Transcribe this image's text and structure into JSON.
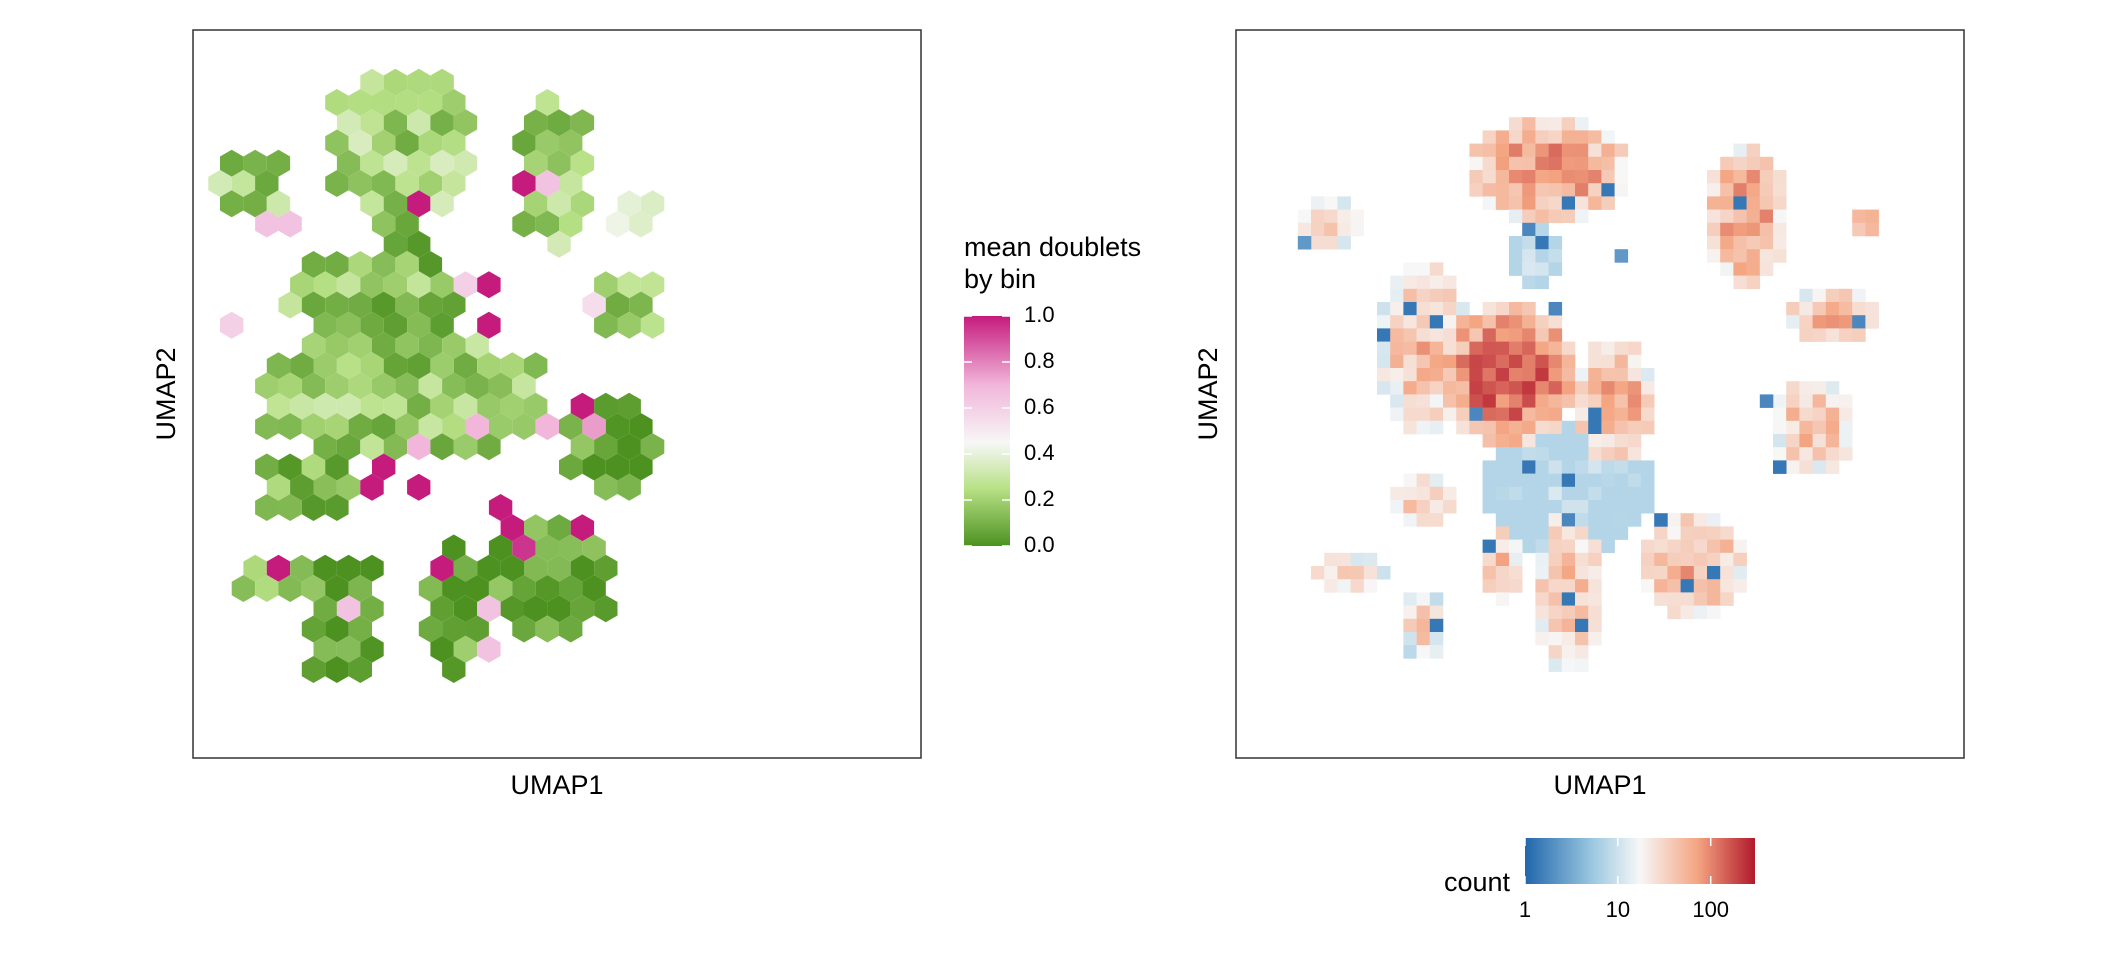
{
  "chart_data": [
    {
      "type": "heatmap",
      "subtype": "hexbin",
      "xlabel": "UMAP1",
      "ylabel": "UMAP2",
      "grid": false,
      "legend": {
        "title_line1": "mean doublets",
        "title_line2": "by bin",
        "position": "right",
        "range": [
          0,
          1
        ],
        "ticks": [
          "1.0",
          "0.8",
          "0.6",
          "0.4",
          "0.2",
          "0.0"
        ],
        "tick_values": [
          1.0,
          0.8,
          0.6,
          0.4,
          0.2,
          0.0
        ]
      },
      "colors": {
        "low": "#4d9221",
        "mid": "#f7f7f7",
        "high": "#c51b7d"
      },
      "groups": [
        {
          "name": "top-cluster",
          "col": [
            5,
            10
          ],
          "row": [
            1,
            7
          ],
          "level": 0.22
        },
        {
          "name": "stalk",
          "col": [
            7,
            8
          ],
          "row": [
            8,
            9
          ],
          "level": 0.05
        },
        {
          "name": "upper-middle",
          "col": [
            3,
            10
          ],
          "row": [
            10,
            13
          ],
          "level": 0.15
        },
        {
          "name": "central-mass",
          "col": [
            2,
            13
          ],
          "row": [
            14,
            19
          ],
          "level": 0.18
        },
        {
          "name": "left-lower-wing",
          "col": [
            2,
            5
          ],
          "row": [
            20,
            22
          ],
          "level": 0.15
        },
        {
          "name": "top-right-spike",
          "col": [
            13,
            15
          ],
          "row": [
            2,
            9
          ],
          "level": 0.2
        },
        {
          "name": "left-small",
          "col": [
            0,
            2
          ],
          "row": [
            5,
            7
          ],
          "level": 0.2
        },
        {
          "name": "right-small-a",
          "col": [
            17,
            18
          ],
          "row": [
            7,
            8
          ],
          "level": 0.3
        },
        {
          "name": "right-small-b",
          "col": [
            16,
            18
          ],
          "row": [
            11,
            13
          ],
          "level": 0.2
        },
        {
          "name": "right-cluster",
          "col": [
            15,
            18
          ],
          "row": [
            17,
            21
          ],
          "level": 0.03
        },
        {
          "name": "lower-right-mass",
          "col": [
            12,
            16
          ],
          "row": [
            23,
            28
          ],
          "level": 0.03
        },
        {
          "name": "lower-left-blob",
          "col": [
            1,
            3
          ],
          "row": [
            25,
            26
          ],
          "level": 0.2
        },
        {
          "name": "lower-left-stalk",
          "col": [
            4,
            6
          ],
          "row": [
            25,
            30
          ],
          "level": 0.05
        },
        {
          "name": "lower-middle",
          "col": [
            9,
            11
          ],
          "row": [
            24,
            30
          ],
          "level": 0.05
        }
      ],
      "highlights": [
        {
          "col": 8,
          "row": 7,
          "value": 1.0
        },
        {
          "col": 11,
          "row": 11,
          "value": 1.0
        },
        {
          "col": 11,
          "row": 13,
          "value": 1.0
        },
        {
          "col": 14,
          "row": 6,
          "value": 0.65
        },
        {
          "col": 13,
          "row": 6,
          "value": 1.0
        },
        {
          "col": 2,
          "row": 8,
          "value": 0.65
        },
        {
          "col": 3,
          "row": 8,
          "value": 0.65
        },
        {
          "col": 7,
          "row": 20,
          "value": 1.0
        },
        {
          "col": 8,
          "row": 21,
          "value": 1.0
        },
        {
          "col": 12,
          "row": 22,
          "value": 1.0
        },
        {
          "col": 12,
          "row": 23,
          "value": 1.0
        },
        {
          "col": 13,
          "row": 24,
          "value": 0.95
        },
        {
          "col": 15,
          "row": 23,
          "value": 1.0
        },
        {
          "col": 9,
          "row": 25,
          "value": 1.0
        },
        {
          "col": 2,
          "row": 25,
          "value": 1.0
        },
        {
          "col": 11,
          "row": 18,
          "value": 0.7
        },
        {
          "col": 14,
          "row": 18,
          "value": 0.7
        },
        {
          "col": 6,
          "row": 21,
          "value": 1.0
        },
        {
          "col": 15,
          "row": 17,
          "value": 1.0
        },
        {
          "col": 16,
          "row": 18,
          "value": 0.75
        },
        {
          "col": 11,
          "row": 27,
          "value": 0.65
        },
        {
          "col": 11,
          "row": 29,
          "value": 0.65
        },
        {
          "col": 8,
          "row": 19,
          "value": 0.7
        },
        {
          "col": 10,
          "row": 11,
          "value": 0.6
        },
        {
          "col": 0,
          "row": 13,
          "value": 0.6
        },
        {
          "col": 5,
          "row": 27,
          "value": 0.65
        },
        {
          "col": 16,
          "row": 12,
          "value": 0.55
        }
      ]
    },
    {
      "type": "heatmap",
      "subtype": "square-bin",
      "xlabel": "UMAP1",
      "ylabel": "UMAP2",
      "grid": false,
      "scale": "log10",
      "legend": {
        "title": "count",
        "position": "bottom",
        "range": [
          1,
          300
        ],
        "ticks": [
          "1",
          "10",
          "100"
        ],
        "tick_values": [
          1,
          10,
          100
        ]
      },
      "colors": {
        "low": "#2166ac",
        "mid": "#f7f7f7",
        "high": "#b2182b"
      },
      "groups": [
        {
          "name": "top-cluster",
          "col": [
            17,
            28
          ],
          "row": [
            6,
            13
          ],
          "level": 0.72
        },
        {
          "name": "stalk",
          "col": [
            20,
            23
          ],
          "row": [
            14,
            18
          ],
          "level": 0.35
        },
        {
          "name": "left-small",
          "col": [
            4,
            8
          ],
          "row": [
            12,
            15
          ],
          "level": 0.6
        },
        {
          "name": "top-right-spike",
          "col": [
            35,
            40
          ],
          "row": [
            8,
            18
          ],
          "level": 0.7
        },
        {
          "name": "right-small-a",
          "col": [
            46,
            47
          ],
          "row": [
            13,
            14
          ],
          "level": 0.65
        },
        {
          "name": "right-small-b",
          "col": [
            41,
            47
          ],
          "row": [
            19,
            22
          ],
          "level": 0.65
        },
        {
          "name": "central-left",
          "col": [
            10,
            16
          ],
          "row": [
            17,
            29
          ],
          "level": 0.62
        },
        {
          "name": "central-core",
          "col": [
            15,
            24
          ],
          "row": [
            20,
            30
          ],
          "level": 0.82
        },
        {
          "name": "central-right",
          "col": [
            25,
            30
          ],
          "row": [
            23,
            31
          ],
          "level": 0.68
        },
        {
          "name": "right-cluster",
          "col": [
            40,
            45
          ],
          "row": [
            26,
            32
          ],
          "level": 0.62
        },
        {
          "name": "sparse-center",
          "col": [
            18,
            30
          ],
          "row": [
            29,
            38
          ],
          "level": 0.3
        },
        {
          "name": "left-lower",
          "col": [
            11,
            15
          ],
          "row": [
            33,
            36
          ],
          "level": 0.6
        },
        {
          "name": "lower-left-blob",
          "col": [
            5,
            10
          ],
          "row": [
            39,
            41
          ],
          "level": 0.55
        },
        {
          "name": "lower-left-stalk",
          "col": [
            12,
            14
          ],
          "row": [
            42,
            46
          ],
          "level": 0.55
        },
        {
          "name": "lower-middle",
          "col": [
            18,
            20
          ],
          "row": [
            37,
            42
          ],
          "level": 0.6
        },
        {
          "name": "lower-middle-stalk",
          "col": [
            22,
            26
          ],
          "row": [
            36,
            47
          ],
          "level": 0.62
        },
        {
          "name": "lower-right-mass",
          "col": [
            30,
            37
          ],
          "row": [
            36,
            43
          ],
          "level": 0.66
        }
      ],
      "lows": [
        {
          "col": 24,
          "row": 12,
          "value": 0.05
        },
        {
          "col": 27,
          "row": 11,
          "value": 0.05
        },
        {
          "col": 21,
          "row": 14,
          "value": 0.1
        },
        {
          "col": 22,
          "row": 15,
          "value": 0.05
        },
        {
          "col": 12,
          "row": 20,
          "value": 0.05
        },
        {
          "col": 14,
          "row": 21,
          "value": 0.05
        },
        {
          "col": 10,
          "row": 22,
          "value": 0.05
        },
        {
          "col": 23,
          "row": 20,
          "value": 0.1
        },
        {
          "col": 26,
          "row": 28,
          "value": 0.05
        },
        {
          "col": 26,
          "row": 29,
          "value": 0.05
        },
        {
          "col": 21,
          "row": 32,
          "value": 0.05
        },
        {
          "col": 24,
          "row": 33,
          "value": 0.05
        },
        {
          "col": 24,
          "row": 36,
          "value": 0.1
        },
        {
          "col": 18,
          "row": 38,
          "value": 0.05
        },
        {
          "col": 24,
          "row": 42,
          "value": 0.05
        },
        {
          "col": 25,
          "row": 44,
          "value": 0.05
        },
        {
          "col": 14,
          "row": 44,
          "value": 0.05
        },
        {
          "col": 31,
          "row": 36,
          "value": 0.05
        },
        {
          "col": 35,
          "row": 40,
          "value": 0.05
        },
        {
          "col": 33,
          "row": 41,
          "value": 0.05
        },
        {
          "col": 40,
          "row": 32,
          "value": 0.05
        },
        {
          "col": 39,
          "row": 27,
          "value": 0.1
        },
        {
          "col": 46,
          "row": 21,
          "value": 0.1
        },
        {
          "col": 4,
          "row": 15,
          "value": 0.15
        },
        {
          "col": 37,
          "row": 12,
          "value": 0.05
        },
        {
          "col": 17,
          "row": 28,
          "value": 0.1
        },
        {
          "col": 28,
          "row": 16,
          "value": 0.15
        }
      ]
    }
  ]
}
